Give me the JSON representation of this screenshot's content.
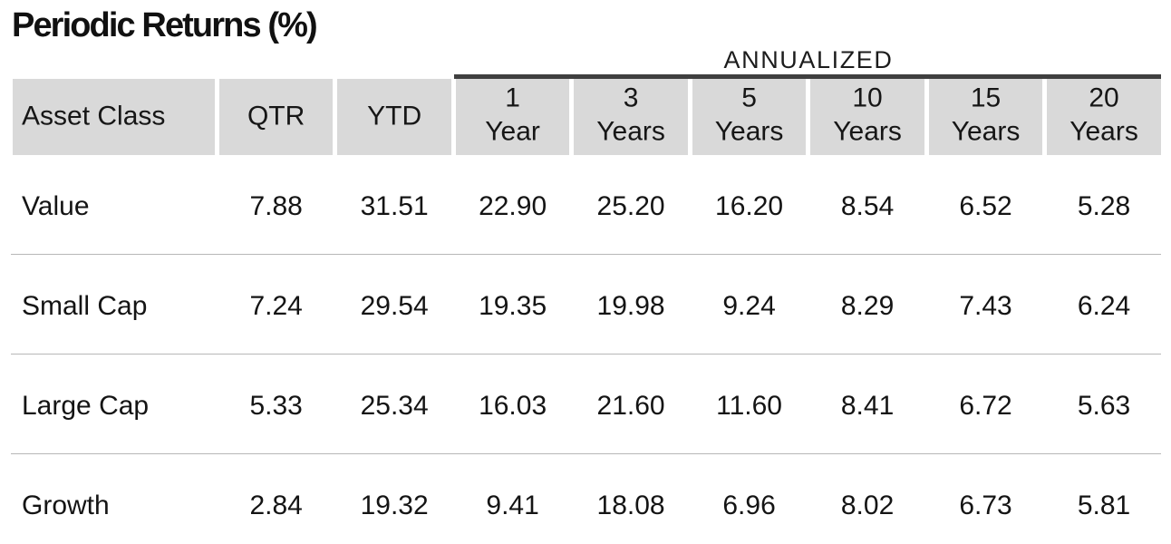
{
  "title": "Periodic Returns (%)",
  "table": {
    "annualized_label": "ANNUALIZED",
    "columns": [
      {
        "label": "Asset Class"
      },
      {
        "label": "QTR"
      },
      {
        "label": "YTD"
      },
      {
        "line1": "1",
        "line2": "Year"
      },
      {
        "line1": "3",
        "line2": "Years"
      },
      {
        "line1": "5",
        "line2": "Years"
      },
      {
        "line1": "10",
        "line2": "Years"
      },
      {
        "line1": "15",
        "line2": "Years"
      },
      {
        "line1": "20",
        "line2": "Years"
      }
    ],
    "rows": [
      {
        "asset_class": "Value",
        "values": [
          "7.88",
          "31.51",
          "22.90",
          "25.20",
          "16.20",
          "8.54",
          "6.52",
          "5.28"
        ]
      },
      {
        "asset_class": "Small Cap",
        "values": [
          "7.24",
          "29.54",
          "19.35",
          "19.98",
          "9.24",
          "8.29",
          "7.43",
          "6.24"
        ]
      },
      {
        "asset_class": "Large Cap",
        "values": [
          "5.33",
          "25.34",
          "16.03",
          "21.60",
          "11.60",
          "8.41",
          "6.72",
          "5.63"
        ]
      },
      {
        "asset_class": "Growth",
        "values": [
          "2.84",
          "19.32",
          "9.41",
          "18.08",
          "6.96",
          "8.02",
          "6.73",
          "5.81"
        ]
      }
    ]
  },
  "colors": {
    "header_cell_background": "#d9d9d9",
    "annualized_rule": "#3f3f3f",
    "row_separator": "#b7b7b7",
    "text": "#141414"
  }
}
